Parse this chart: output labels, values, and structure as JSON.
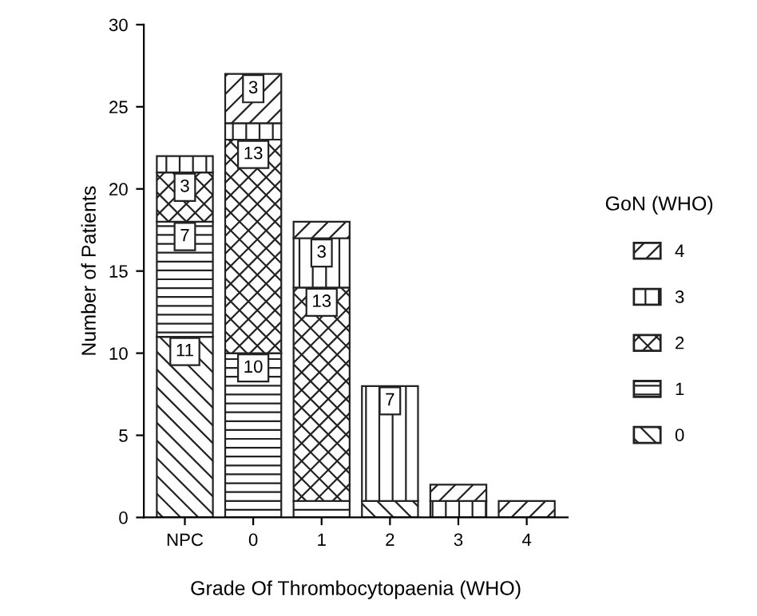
{
  "chart_data": {
    "type": "bar",
    "stacked": true,
    "xlabel": "Grade Of Thrombocytopaenia (WHO)",
    "ylabel": "Number of Patients",
    "legend_title": "GoN (WHO)",
    "legend": "right",
    "categories": [
      "NPC",
      "0",
      "1",
      "2",
      "3",
      "4"
    ],
    "series": [
      {
        "name": "0",
        "color": "#222222",
        "values": [
          11,
          null,
          null,
          1,
          null,
          null
        ],
        "value_labels": [
          "11",
          null,
          null,
          null,
          null,
          null
        ]
      },
      {
        "name": "1",
        "color": "#222222",
        "values": [
          7,
          10,
          1,
          null,
          null,
          null
        ],
        "value_labels": [
          "7",
          "10",
          null,
          null,
          null,
          null
        ]
      },
      {
        "name": "2",
        "color": "#222222",
        "values": [
          3,
          13,
          13,
          null,
          null,
          null
        ],
        "value_labels": [
          "3",
          "13",
          "13",
          null,
          null,
          null
        ]
      },
      {
        "name": "3",
        "color": "#222222",
        "values": [
          1,
          1,
          3,
          7,
          1,
          null
        ],
        "value_labels": [
          null,
          null,
          "3",
          "7",
          null,
          null
        ]
      },
      {
        "name": "4",
        "color": "#222222",
        "values": [
          null,
          3,
          1,
          null,
          1,
          1
        ],
        "value_labels": [
          null,
          "3",
          null,
          null,
          null,
          null
        ]
      }
    ],
    "ylim": [
      0,
      30
    ],
    "yticks": [
      0,
      5,
      10,
      15,
      20,
      25,
      30
    ],
    "grid": false
  }
}
